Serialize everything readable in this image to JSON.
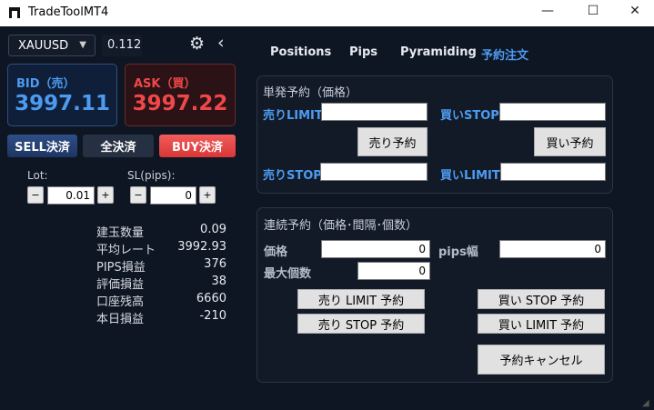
{
  "window": {
    "title": "TradeToolMT4",
    "minimize": "—",
    "maximize": "☐",
    "close": "✕"
  },
  "top": {
    "symbol": "XAUUSD",
    "spread": "0.112"
  },
  "bid": {
    "label": "BID（売）",
    "value": "3997.11"
  },
  "ask": {
    "label": "ASK（買）",
    "value": "3997.22"
  },
  "actions": {
    "sell_close": "SELL決済",
    "close_all": "全決済",
    "buy_close": "BUY決済"
  },
  "lot": {
    "label": "Lot:",
    "value": "0.01"
  },
  "sl": {
    "label": "SL(pips):",
    "value": "0"
  },
  "stepper": {
    "minus": "−",
    "plus": "+"
  },
  "stats": [
    {
      "label": "建玉数量",
      "value": "0.09"
    },
    {
      "label": "平均レート",
      "value": "3992.93"
    },
    {
      "label": "PIPS損益",
      "value": "376"
    },
    {
      "label": "評価損益",
      "value": "38"
    },
    {
      "label": "口座残高",
      "value": "6660"
    },
    {
      "label": "本日損益",
      "value": "-210"
    }
  ],
  "tabs": [
    {
      "label": "Positions"
    },
    {
      "label": "Pips"
    },
    {
      "label": "Pyramiding"
    },
    {
      "label": "予約注文",
      "active": true
    }
  ],
  "single": {
    "title": "単発予約（価格）",
    "sell_limit": "売りLIMIT",
    "buy_stop": "買いSTOP",
    "sell_stop": "売りSTOP",
    "buy_limit": "買いLIMIT",
    "sell_btn": "売り予約",
    "buy_btn": "買い予約",
    "sell_limit_value": "",
    "buy_stop_value": "",
    "sell_stop_value": "",
    "buy_limit_value": ""
  },
  "series": {
    "title": "連続予約（価格･間隔･個数）",
    "price_label": "価格",
    "price_value": "0",
    "pips_label": "pips幅",
    "pips_value": "0",
    "max_label": "最大個数",
    "max_value": "0",
    "sell_limit_btn": "売り LIMIT 予約",
    "sell_stop_btn": "売り STOP 予約",
    "buy_stop_btn": "買い STOP 予約",
    "buy_limit_btn": "買い LIMIT 予約",
    "cancel_btn": "予約キャンセル"
  },
  "colors": {
    "background": "#0f1623",
    "bid": "#4d9bf0",
    "ask": "#f04848",
    "accent": "#4d9bf0"
  }
}
